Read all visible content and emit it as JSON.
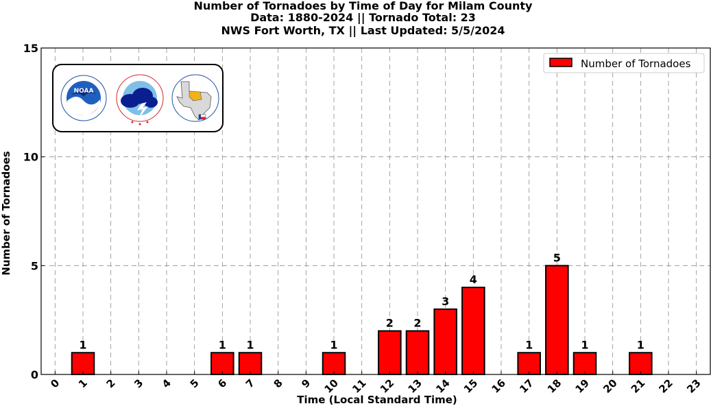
{
  "chart_data": {
    "type": "bar",
    "title_lines": [
      "Number of Tornadoes by Time of Day for Milam County",
      "Data: 1880-2024 || Tornado Total: 23",
      "NWS Fort Worth, TX || Last Updated: 5/5/2024"
    ],
    "xlabel": "Time (Local Standard Time)",
    "ylabel": "Number of Tornadoes",
    "categories": [
      "0",
      "1",
      "2",
      "3",
      "4",
      "5",
      "6",
      "7",
      "8",
      "9",
      "10",
      "11",
      "12",
      "13",
      "14",
      "15",
      "16",
      "17",
      "18",
      "19",
      "20",
      "21",
      "22",
      "23"
    ],
    "values": [
      0,
      1,
      0,
      0,
      0,
      0,
      1,
      1,
      0,
      0,
      1,
      0,
      2,
      2,
      3,
      4,
      0,
      1,
      5,
      1,
      0,
      1,
      0,
      0
    ],
    "series_name": "Number of Tornadoes",
    "ylim": [
      0,
      15
    ],
    "yticks": [
      0,
      5,
      10,
      15
    ],
    "grid": true,
    "legend_position": "top-right",
    "bar_color": "#ff0000",
    "edge_color": "#000000"
  },
  "logos": {
    "noaa": {
      "label": "NOAA",
      "ring_text": "NATIONAL OCEANIC AND ATMOSPHERIC ADMINISTRATION",
      "bottom_text": "U.S. DEPARTMENT OF COMMERCE"
    },
    "nws": {
      "ring_text": "NATIONAL WEATHER SERVICE"
    },
    "fwd": {
      "ring_text": "Protecting Life And Property Across North Texas",
      "since": "Since 1870"
    }
  }
}
